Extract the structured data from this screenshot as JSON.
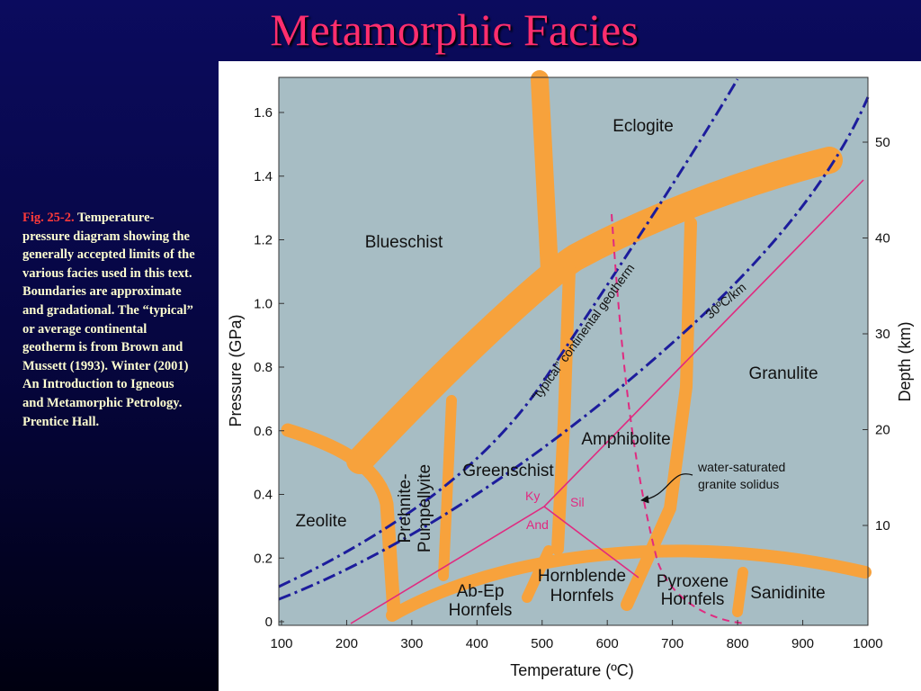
{
  "title": "Metamorphic Facies",
  "caption": {
    "label": "Fig. 25-2.",
    "text": "Temperature-pressure diagram showing the generally accepted limits of the various facies used in this text. Boundaries are approximate and gradational. The “typical” or average continental geotherm is from Brown and Mussett (1993). Winter (2001) An Introduction to Igneous and Metamorphic Petrology. Prentice Hall."
  },
  "diagram": {
    "x_axis_label": "Temperature (ºC)",
    "y_axis_label": "Pressure (GPa)",
    "y2_axis_label": "Depth (km)",
    "x_ticks": [
      "100",
      "200",
      "300",
      "400",
      "500",
      "600",
      "700",
      "800",
      "900",
      "1000"
    ],
    "y_ticks": [
      "0",
      "0.2",
      "0.4",
      "0.6",
      "0.8",
      "1.0",
      "1.2",
      "1.4",
      "1.6"
    ],
    "y2_ticks": [
      "10",
      "20",
      "30",
      "40",
      "50"
    ],
    "facies": [
      {
        "lines": [
          "Eclogite"
        ]
      },
      {
        "lines": [
          "Blueschist"
        ]
      },
      {
        "lines": [
          "Granulite"
        ]
      },
      {
        "lines": [
          "Amphibolite"
        ]
      },
      {
        "lines": [
          "Greenschist"
        ]
      },
      {
        "lines": [
          "Zeolite"
        ]
      },
      {
        "lines": [
          "Prehnite-",
          "Pumpellyite"
        ]
      },
      {
        "lines": [
          "Ab-Ep",
          "Hornfels"
        ]
      },
      {
        "lines": [
          "Hornblende",
          "Hornfels"
        ]
      },
      {
        "lines": [
          "Pyroxene",
          "Hornfels"
        ]
      },
      {
        "lines": [
          "Sanidinite"
        ]
      }
    ],
    "annotations": {
      "typical_geotherm": "“typical” continental geotherm",
      "geotherm_30": "30ºC/km",
      "solidus": [
        "water-saturated",
        "granite solidus"
      ],
      "aluminosilicates": [
        "Ky",
        "Sil",
        "And"
      ]
    }
  }
}
